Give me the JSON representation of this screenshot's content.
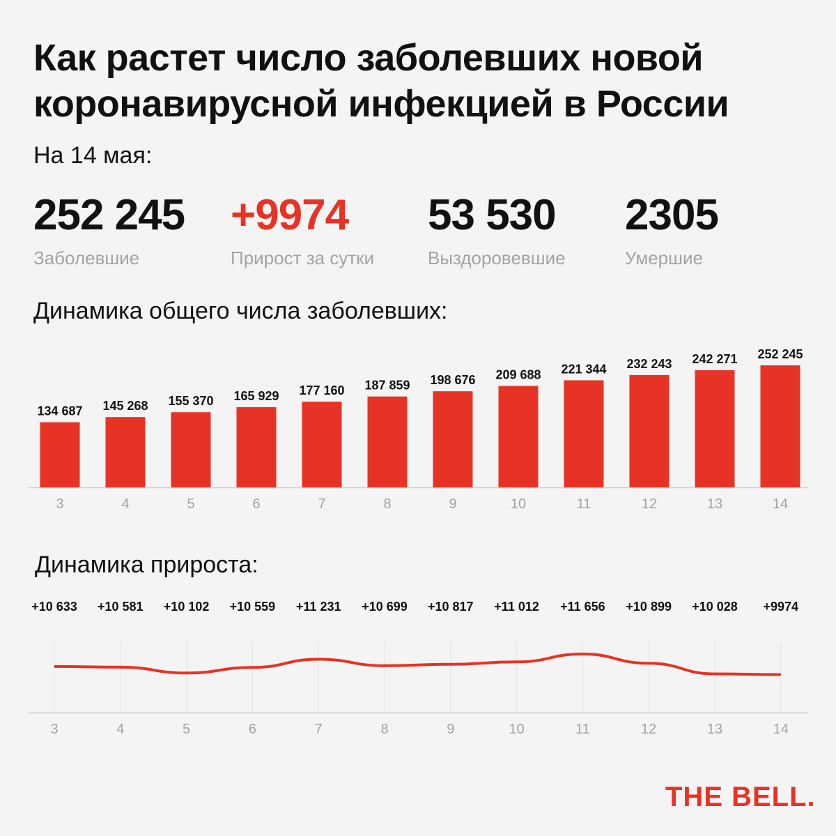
{
  "title": "Как растет число заболевших новой коронавирусной инфекцией в России",
  "date_label": "На 14 мая:",
  "stats": [
    {
      "value": "252 245",
      "label": "Заболевшие"
    },
    {
      "value": "+9974",
      "label": "Прирост за сутки"
    },
    {
      "value": "53 530",
      "label": "Выздоровевшие"
    },
    {
      "value": "2305",
      "label": "Умершие"
    }
  ],
  "colors": {
    "accent": "#e63325",
    "muted": "#a3a3a3",
    "text": "#111111",
    "background": "#f4f4f4"
  },
  "section_totals": "Динамика общего числа заболевших:",
  "section_growth": "Динамика прироста:",
  "logo": "THE BELL.",
  "chart_data": [
    {
      "type": "bar",
      "categories": [
        "3",
        "4",
        "5",
        "6",
        "7",
        "8",
        "9",
        "10",
        "11",
        "12",
        "13",
        "14"
      ],
      "values": [
        134687,
        145268,
        155370,
        165929,
        177160,
        187859,
        198676,
        209688,
        221344,
        232243,
        242271,
        252245
      ],
      "data_labels": [
        "134 687",
        "145 268",
        "155 370",
        "165 929",
        "177 160",
        "187 859",
        "198 676",
        "209 688",
        "221 344",
        "232 243",
        "242 271",
        "252 245"
      ],
      "title": "Динамика общего числа заболевших:"
    },
    {
      "type": "line",
      "categories": [
        "3",
        "4",
        "5",
        "6",
        "7",
        "8",
        "9",
        "10",
        "11",
        "12",
        "13",
        "14"
      ],
      "values": [
        10633,
        10581,
        10102,
        10559,
        11231,
        10699,
        10817,
        11012,
        11656,
        10899,
        10028,
        9974
      ],
      "data_labels": [
        "+10 633",
        "+10 581",
        "+10 102",
        "+10 559",
        "+11 231",
        "+10 699",
        "+10 817",
        "+11 012",
        "+11 656",
        "+10 899",
        "+10 028",
        "+9974"
      ],
      "title": "Динамика прироста:"
    }
  ]
}
